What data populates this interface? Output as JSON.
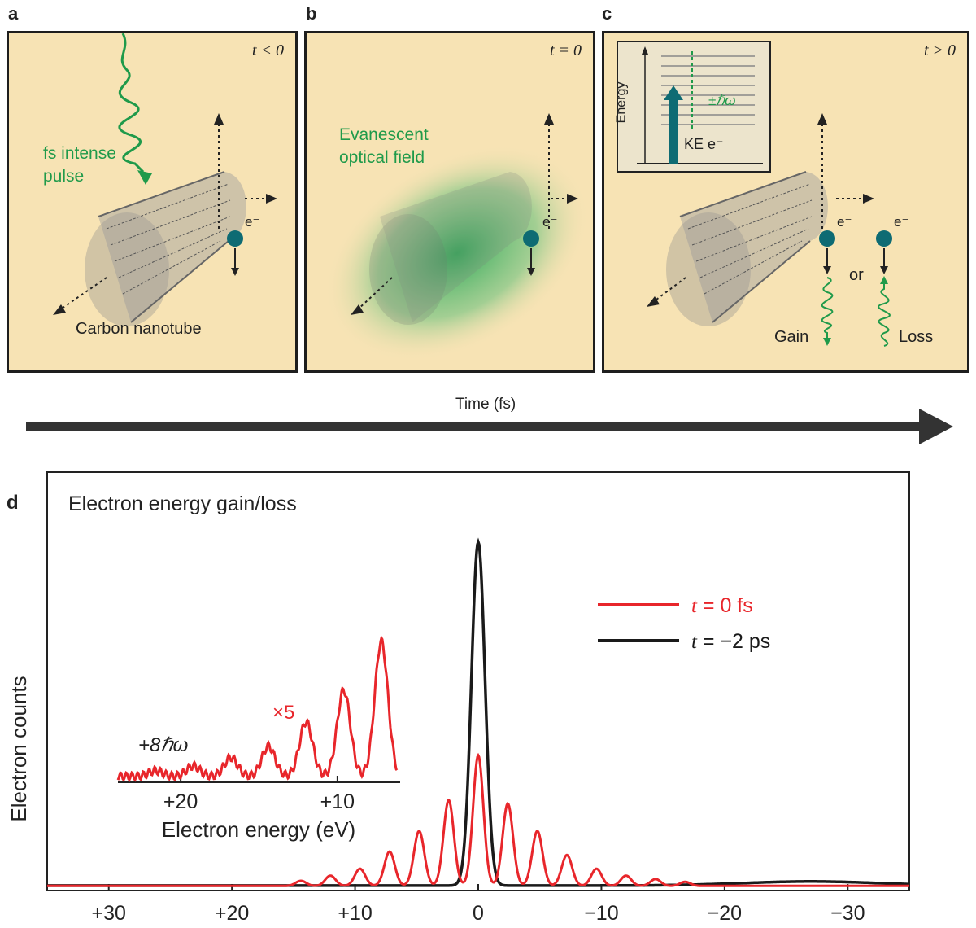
{
  "panels": {
    "a": {
      "letter": "a",
      "time": "t < 0",
      "pulse_label_1": "fs intense",
      "pulse_label_2": "pulse",
      "tube_label": "Carbon nanotube",
      "electron": "e⁻"
    },
    "b": {
      "letter": "b",
      "time": "t = 0",
      "field_label_1": "Evanescent",
      "field_label_2": "optical field",
      "electron": "e⁻"
    },
    "c": {
      "letter": "c",
      "time": "t > 0",
      "inset_axis": "Energy",
      "inset_hw": "±ℏω",
      "inset_ke": "KE e⁻",
      "electron": "e⁻",
      "or": "or",
      "gain": "Gain",
      "loss": "Loss"
    }
  },
  "time_axis": {
    "label": "Time (fs)"
  },
  "colors": {
    "panel_bg": "#f7e3b4",
    "green": "#1f9a4a",
    "red": "#e8262b",
    "black": "#1a1a1a",
    "teal": "#0e6b73"
  },
  "chart_data": {
    "type": "line",
    "panel_letter": "d",
    "title": "Electron energy gain/loss",
    "ylabel": "Electron counts",
    "xlabel": "",
    "xlim": [
      35,
      -35
    ],
    "x_ticks": [
      "+30",
      "+20",
      "+10",
      "0",
      "−10",
      "−20",
      "−30"
    ],
    "x_tick_values": [
      30,
      20,
      10,
      0,
      -10,
      -20,
      -30
    ],
    "legend_position": "top-right",
    "series": [
      {
        "name": "t =  0 fs",
        "label_italic": "t",
        "label_rest": " =  0 fs",
        "color": "#e8262b",
        "peak_spacing_eV": 2.4,
        "peaks": [
          {
            "n": 0,
            "rel": 0.38
          },
          {
            "n": 1,
            "rel": 0.24
          },
          {
            "n": -1,
            "rel": 0.25
          },
          {
            "n": 2,
            "rel": 0.16
          },
          {
            "n": -2,
            "rel": 0.16
          },
          {
            "n": 3,
            "rel": 0.09
          },
          {
            "n": -3,
            "rel": 0.1
          },
          {
            "n": 4,
            "rel": 0.05
          },
          {
            "n": -4,
            "rel": 0.05
          },
          {
            "n": 5,
            "rel": 0.03
          },
          {
            "n": -5,
            "rel": 0.03
          },
          {
            "n": 6,
            "rel": 0.02
          },
          {
            "n": -6,
            "rel": 0.015
          },
          {
            "n": 7,
            "rel": 0.012
          }
        ]
      },
      {
        "name": "t = −2 ps",
        "label_italic": "t",
        "label_rest": " = −2 ps",
        "color": "#1a1a1a",
        "peaks": [
          {
            "n": 0,
            "rel": 1.0
          }
        ]
      }
    ],
    "inset": {
      "multiplier": "×5",
      "order_label": "+8ℏω",
      "xlabel": "Electron energy (eV)",
      "x_ticks": [
        "+20",
        "+10"
      ],
      "x_tick_values": [
        20,
        10
      ],
      "xlim": [
        24,
        6
      ]
    }
  }
}
